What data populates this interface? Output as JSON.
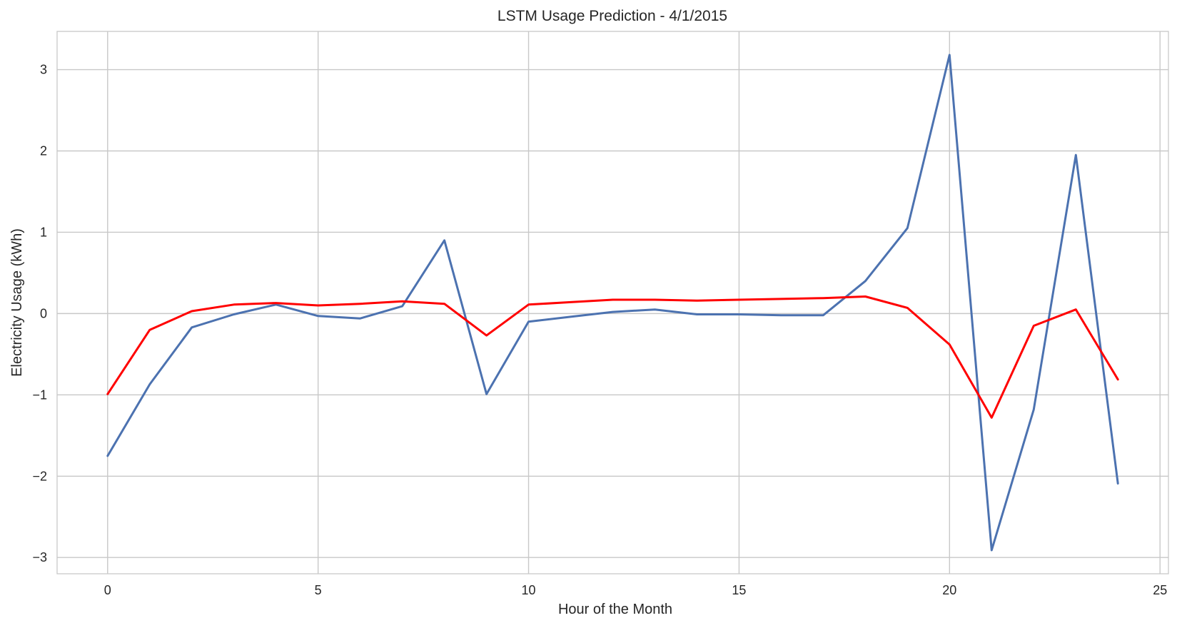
{
  "chart_data": {
    "type": "line",
    "title": "LSTM Usage Prediction - 4/1/2015",
    "xlabel": "Hour of the Month",
    "ylabel": "Electricity Usage (kWh)",
    "xlim": [
      -1.2,
      25.2
    ],
    "ylim": [
      -3.2,
      3.47
    ],
    "xticks": [
      0,
      5,
      10,
      15,
      20,
      25
    ],
    "xtick_labels": [
      "0",
      "5",
      "10",
      "15",
      "20",
      "25"
    ],
    "yticks": [
      3,
      2,
      1,
      0,
      -1,
      -2,
      -3
    ],
    "ytick_labels": [
      "3",
      "2",
      "1",
      "0",
      "−1",
      "−2",
      "−3"
    ],
    "grid": true,
    "x": [
      0,
      1,
      2,
      3,
      4,
      5,
      6,
      7,
      8,
      9,
      10,
      11,
      12,
      13,
      14,
      15,
      16,
      17,
      18,
      19,
      20,
      21,
      22,
      23,
      24
    ],
    "series": [
      {
        "color": "#4c72b0",
        "values": [
          -1.75,
          -0.87,
          -0.17,
          -0.01,
          0.11,
          -0.03,
          -0.06,
          0.09,
          0.9,
          -0.99,
          -0.1,
          -0.04,
          0.02,
          0.05,
          -0.01,
          -0.01,
          -0.02,
          -0.02,
          0.4,
          1.05,
          3.18,
          -2.91,
          -1.18,
          1.95,
          -2.09
        ]
      },
      {
        "color": "#ff0000",
        "values": [
          -0.99,
          -0.2,
          0.03,
          0.11,
          0.13,
          0.1,
          0.12,
          0.15,
          0.12,
          -0.27,
          0.11,
          0.14,
          0.17,
          0.17,
          0.16,
          0.17,
          0.18,
          0.19,
          0.21,
          0.07,
          -0.38,
          -1.28,
          -0.15,
          0.05,
          -0.81
        ]
      }
    ]
  }
}
